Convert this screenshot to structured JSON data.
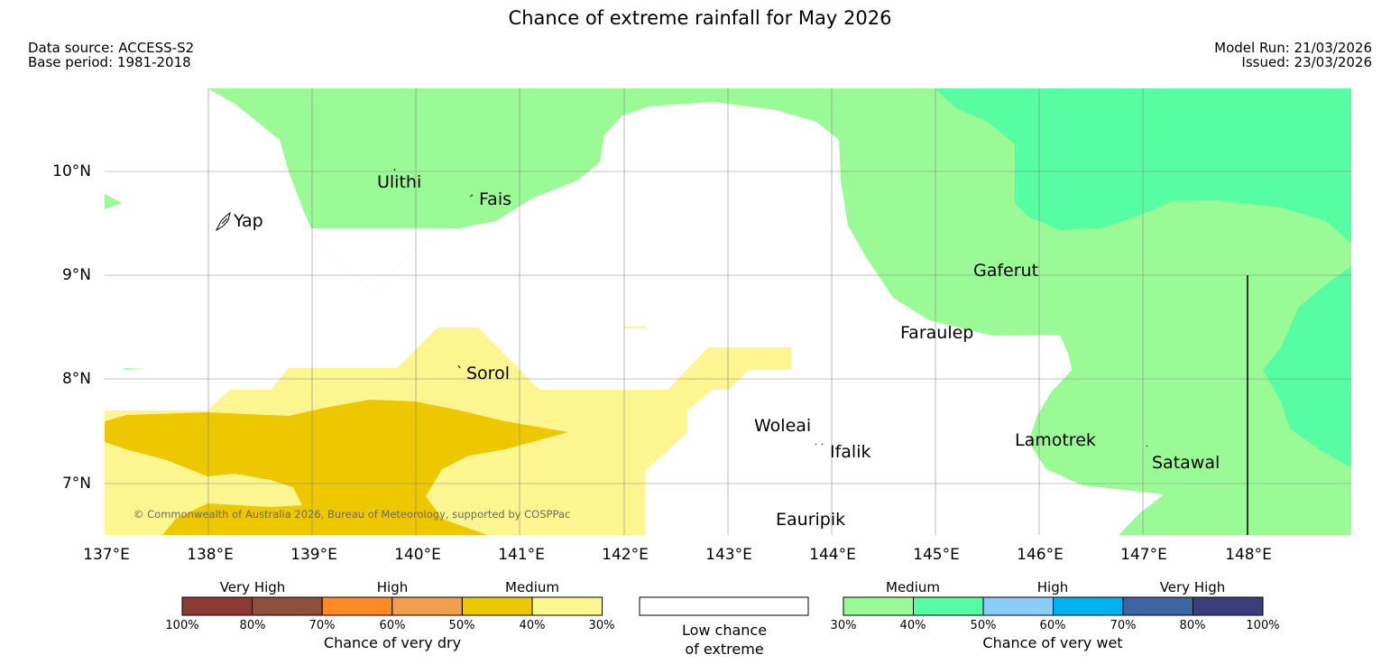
{
  "header": {
    "title": "Chance of extreme rainfall for May 2026",
    "data_source": "Data source: ACCESS-S2",
    "base_period": "Base period: 1981-2018",
    "model_run": "Model Run: 21/03/2026",
    "issued": "Issued: 23/03/2026"
  },
  "map": {
    "lat_labels": [
      "10°N",
      "9°N",
      "8°N",
      "7°N"
    ],
    "lon_labels": [
      "137°E",
      "138°E",
      "139°E",
      "140°E",
      "141°E",
      "142°E",
      "143°E",
      "144°E",
      "145°E",
      "146°E",
      "147°E",
      "148°E"
    ],
    "places": [
      "Ulithi",
      "Fais",
      "Yap",
      "Gaferut",
      "Faraulep",
      "Sorol",
      "Woleai",
      "Ifalik",
      "Lamotrek",
      "Satawal",
      "Eauripik"
    ],
    "copyright": "© Commonwealth of Australia 2026, Bureau of Meteorology, supported by COSPPac",
    "colors": {
      "dry_medium_30": "#fdf590",
      "dry_medium_40": "#edc800",
      "wet_medium_30": "#9afb96",
      "wet_medium_40": "#57fda2"
    }
  },
  "legend": {
    "dry": {
      "categories": [
        "Very High",
        "High",
        "Medium"
      ],
      "ticks": [
        "100%",
        "80%",
        "70%",
        "60%",
        "50%",
        "40%",
        "30%"
      ],
      "title": "Chance of very dry",
      "colors": [
        "#8b3a32",
        "#8e503c",
        "#ff8a25",
        "#f0a04c",
        "#edc800",
        "#fdf590"
      ]
    },
    "low": {
      "line1": "Low chance",
      "line2": "of extreme"
    },
    "wet": {
      "categories": [
        "Medium",
        "High",
        "Very High"
      ],
      "ticks": [
        "30%",
        "40%",
        "50%",
        "60%",
        "70%",
        "80%",
        "100%"
      ],
      "title": "Chance of very wet",
      "colors": [
        "#9afb96",
        "#57fda2",
        "#8acdf8",
        "#00b1ef",
        "#3b65a5",
        "#3b3e7a"
      ]
    }
  }
}
